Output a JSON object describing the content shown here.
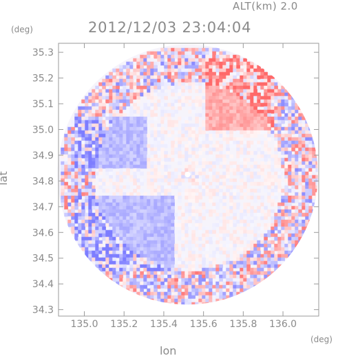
{
  "header": {
    "altitude_label": "ALT(km) 2.0",
    "datetime": "2012/12/03 23:04:04"
  },
  "axes": {
    "x_unit": "(deg)",
    "y_unit": "(deg)",
    "x_title": "lon",
    "y_title": "lat"
  },
  "chart_data": {
    "type": "heatmap",
    "title": "2012/12/03 23:04:04",
    "xlabel": "lon",
    "ylabel": "lat",
    "xlim": [
      134.87,
      136.18
    ],
    "ylim": [
      34.275,
      35.335
    ],
    "x_ticks": [
      135.0,
      135.2,
      135.4,
      135.6,
      135.8,
      136.0
    ],
    "x_tick_labels": [
      "135.0",
      "135.2",
      "135.4",
      "135.6",
      "135.8",
      "136.0"
    ],
    "y_ticks": [
      34.3,
      34.4,
      34.5,
      34.6,
      34.7,
      34.8,
      34.9,
      35.0,
      35.1,
      35.2,
      35.3
    ],
    "y_tick_labels": [
      "34.3",
      "34.4",
      "34.5",
      "34.6",
      "34.7",
      "34.8",
      "34.9",
      "35.0",
      "35.1",
      "35.2",
      "35.3"
    ],
    "radar_center": [
      135.52,
      34.825
    ],
    "radar_radius_deg_lat": 0.5,
    "colormap": {
      "negative": "#8080ff",
      "zero": "#ffffff",
      "positive": "#ff8080"
    },
    "regions": [
      {
        "description_value": "positive",
        "lon_range": [
          135.6,
          135.95
        ],
        "lat_range": [
          35.0,
          35.3
        ]
      },
      {
        "description_value": "negative",
        "lon_range": [
          134.95,
          135.45
        ],
        "lat_range": [
          34.45,
          34.75
        ]
      },
      {
        "description_value": "negative",
        "lon_range": [
          134.95,
          135.3
        ],
        "lat_range": [
          34.85,
          35.05
        ]
      }
    ]
  }
}
